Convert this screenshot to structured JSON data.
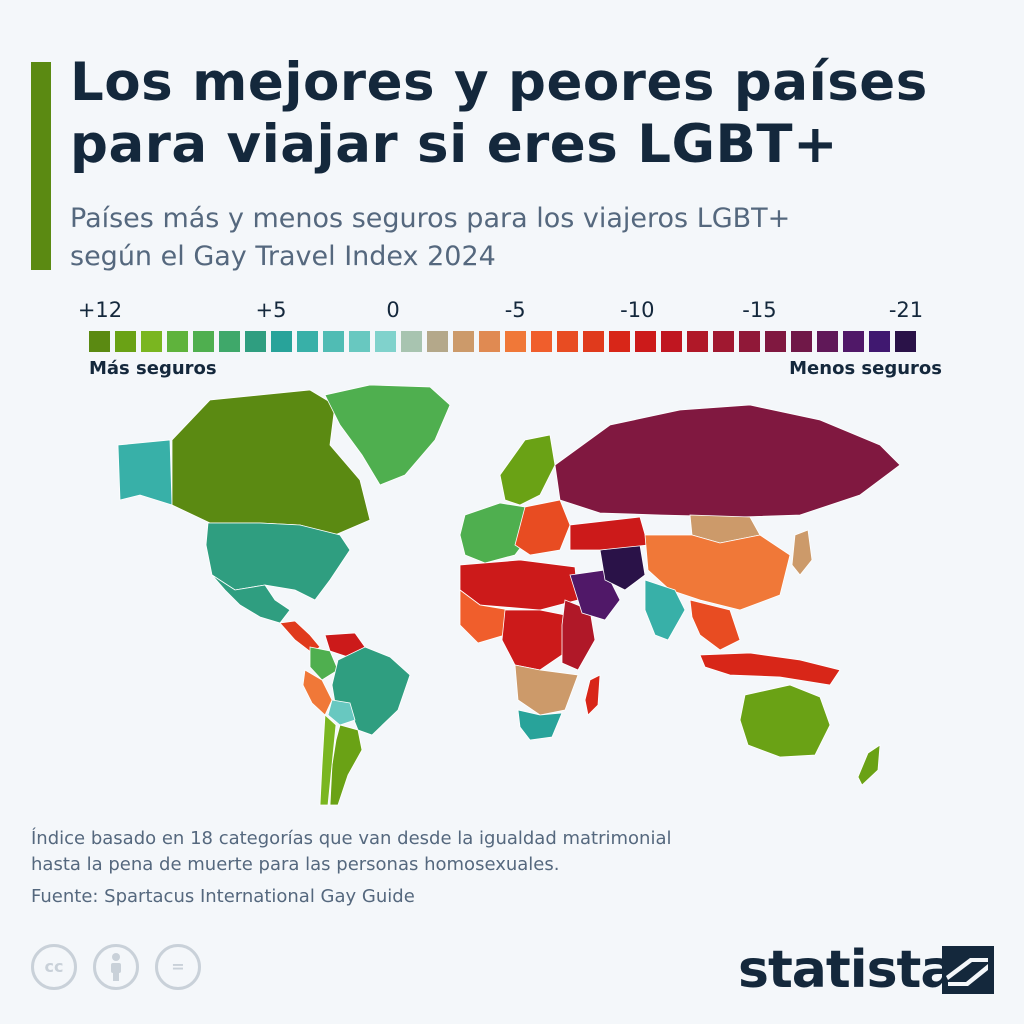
{
  "header": {
    "title_line1": "Los mejores y peores países",
    "title_line2": "para viajar si eres LGBT+",
    "subtitle_line1": "Países más y menos seguros para los viajeros LGBT+",
    "subtitle_line2": "según el Gay Travel Index 2024"
  },
  "legend": {
    "ticks": [
      {
        "label": "+12",
        "value": 12
      },
      {
        "label": "+5",
        "value": 5
      },
      {
        "label": "0",
        "value": 0
      },
      {
        "label": "-5",
        "value": -5
      },
      {
        "label": "-10",
        "value": -10
      },
      {
        "label": "-15",
        "value": -15
      },
      {
        "label": "-21",
        "value": -21
      }
    ],
    "left_label": "Más seguros",
    "right_label": "Menos seguros",
    "scale_colors": [
      "#5b8a12",
      "#6aa215",
      "#7ab620",
      "#5fb33c",
      "#4faf4f",
      "#3fa86a",
      "#2f9e80",
      "#28a39a",
      "#38b0a8",
      "#50bcb4",
      "#68c8c0",
      "#80d2cc",
      "#a8c4b0",
      "#b4a88a",
      "#cc9a6a",
      "#e08a52",
      "#f07838",
      "#f05e2c",
      "#e84c22",
      "#e03a1c",
      "#d82618",
      "#cc1a1a",
      "#c01620",
      "#b01828",
      "#a01830",
      "#901838",
      "#801840",
      "#701848",
      "#601858",
      "#501868",
      "#401870",
      "#2a1248"
    ]
  },
  "map": {
    "regions": [
      {
        "name": "Canadá",
        "color": "#5b8a12"
      },
      {
        "name": "Alaska",
        "color": "#38b0a8"
      },
      {
        "name": "Groenlandia",
        "color": "#4faf4f"
      },
      {
        "name": "Estados Unidos",
        "color": "#2f9e80"
      },
      {
        "name": "México",
        "color": "#2f9e80"
      },
      {
        "name": "Centroamérica",
        "color": "#e03a1c"
      },
      {
        "name": "Brasil",
        "color": "#2f9e80"
      },
      {
        "name": "Perú",
        "color": "#f07838"
      },
      {
        "name": "Bolivia",
        "color": "#68c8c0"
      },
      {
        "name": "Argentina",
        "color": "#6aa215"
      },
      {
        "name": "Chile",
        "color": "#7ab620"
      },
      {
        "name": "Venezuela",
        "color": "#cc1a1a"
      },
      {
        "name": "Colombia",
        "color": "#4faf4f"
      },
      {
        "name": "Europa occidental",
        "color": "#4faf4f"
      },
      {
        "name": "Escandinavia",
        "color": "#6aa215"
      },
      {
        "name": "Europa oriental",
        "color": "#e84c22"
      },
      {
        "name": "Rusia",
        "color": "#801840"
      },
      {
        "name": "Norte de África",
        "color": "#cc1a1a"
      },
      {
        "name": "África occidental",
        "color": "#f05e2c"
      },
      {
        "name": "África central",
        "color": "#cc1a1a"
      },
      {
        "name": "África oriental",
        "color": "#b01828"
      },
      {
        "name": "África austral",
        "color": "#cc9a6a"
      },
      {
        "name": "Sudáfrica",
        "color": "#28a39a"
      },
      {
        "name": "Madagascar",
        "color": "#d82618"
      },
      {
        "name": "Arabia Saudí",
        "color": "#501868"
      },
      {
        "name": "Irán",
        "color": "#2a1248"
      },
      {
        "name": "Asia central",
        "color": "#cc1a1a"
      },
      {
        "name": "China",
        "color": "#f07838"
      },
      {
        "name": "Mongolia",
        "color": "#cc9a6a"
      },
      {
        "name": "India",
        "color": "#38b0a8"
      },
      {
        "name": "Sudeste asiático",
        "color": "#e84c22"
      },
      {
        "name": "Indonesia",
        "color": "#d82618"
      },
      {
        "name": "Japón",
        "color": "#cc9a6a"
      },
      {
        "name": "Australia",
        "color": "#6aa215"
      },
      {
        "name": "Nueva Zelanda",
        "color": "#6aa215"
      }
    ]
  },
  "footer": {
    "note_line1": "Índice basado en 18 categorías que van desde la igualdad matrimonial",
    "note_line2": "hasta la pena de muerte para las personas homosexuales.",
    "source": "Fuente: Spartacus International Gay Guide",
    "cc_icons": [
      "cc-icon",
      "attribution-icon",
      "no-derivatives-icon"
    ],
    "brand": "statista"
  }
}
